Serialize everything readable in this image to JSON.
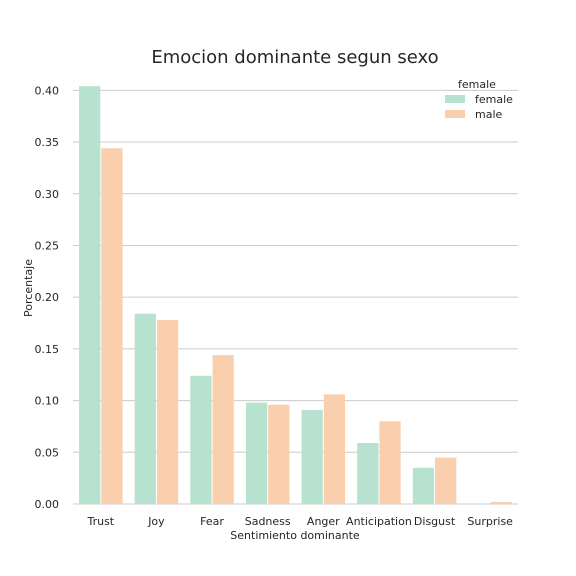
{
  "chart_data": {
    "type": "bar",
    "title": "Emocion dominante segun sexo",
    "xlabel": "Sentimiento dominante",
    "ylabel": "Porcentaje",
    "categories": [
      "Trust",
      "Joy",
      "Fear",
      "Sadness",
      "Anger",
      "Anticipation",
      "Disgust",
      "Surprise"
    ],
    "series": [
      {
        "name": "female",
        "values": [
          0.404,
          0.184,
          0.124,
          0.098,
          0.091,
          0.059,
          0.035,
          0.0
        ],
        "color": "#b7e2d0"
      },
      {
        "name": "male",
        "values": [
          0.344,
          0.178,
          0.144,
          0.096,
          0.106,
          0.08,
          0.045,
          0.002
        ],
        "color": "#f9cfae"
      }
    ],
    "ylim": [
      0,
      0.41
    ],
    "yticks": [
      0.0,
      0.05,
      0.1,
      0.15,
      0.2,
      0.25,
      0.3,
      0.35,
      0.4
    ],
    "ytick_labels": [
      "0.00",
      "0.05",
      "0.10",
      "0.15",
      "0.20",
      "0.25",
      "0.30",
      "0.35",
      "0.40"
    ],
    "grid": "horizontal",
    "legend": {
      "title": "female",
      "placement": "top-right"
    }
  }
}
